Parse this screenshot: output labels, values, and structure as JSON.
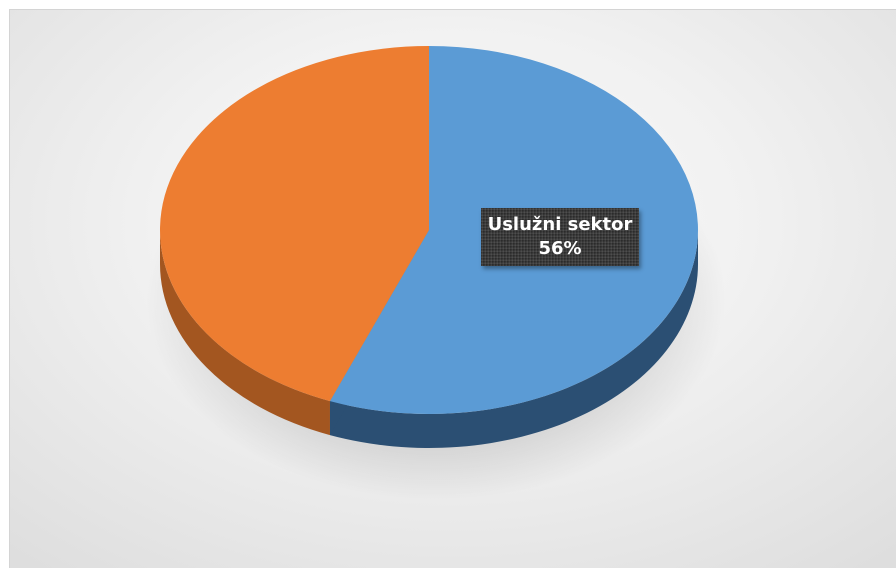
{
  "chart_data": {
    "type": "pie",
    "title": "",
    "slices": [
      {
        "label": "Uslužni sektor",
        "value": 56,
        "color": "#5b9bd5",
        "side_color": "#2b4f73",
        "show_label": true
      },
      {
        "label": "",
        "value": 44,
        "color": "#ed7d31",
        "side_color": "#a35620",
        "show_label": false
      }
    ],
    "data_labels": [
      {
        "category": "Uslužni sektor",
        "percent": "56%"
      }
    ],
    "legend": "none",
    "style": "3d"
  }
}
